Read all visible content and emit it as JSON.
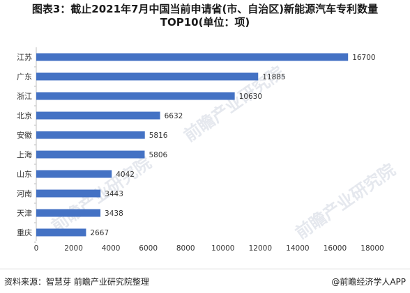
{
  "title_line1": "图表3：截止2021年7月中国当前申请省(市、自治区)新能源汽车专利数量",
  "title_line2": "TOP10(单位：项)",
  "footer_source": "资料来源：智慧芽 前瞻产业研究院整理",
  "footer_brand": "@前瞻经济学人APP",
  "watermark": "前瞻产业研究院",
  "colors": {
    "bar": "#4472c4",
    "axis": "#bfbfbf",
    "text": "#333333"
  },
  "chart_data": {
    "type": "bar",
    "orientation": "horizontal",
    "categories": [
      "江苏",
      "广东",
      "浙江",
      "北京",
      "安徽",
      "上海",
      "山东",
      "河南",
      "天津",
      "重庆"
    ],
    "values": [
      16700,
      11885,
      10630,
      6632,
      5816,
      5806,
      4042,
      3443,
      3438,
      2667
    ],
    "x_ticks": [
      "0",
      "2000",
      "4000",
      "6000",
      "8000",
      "10000",
      "12000",
      "14000",
      "16000",
      "18000"
    ],
    "xlim": [
      0,
      18000
    ],
    "grid": false,
    "legend": "none"
  }
}
